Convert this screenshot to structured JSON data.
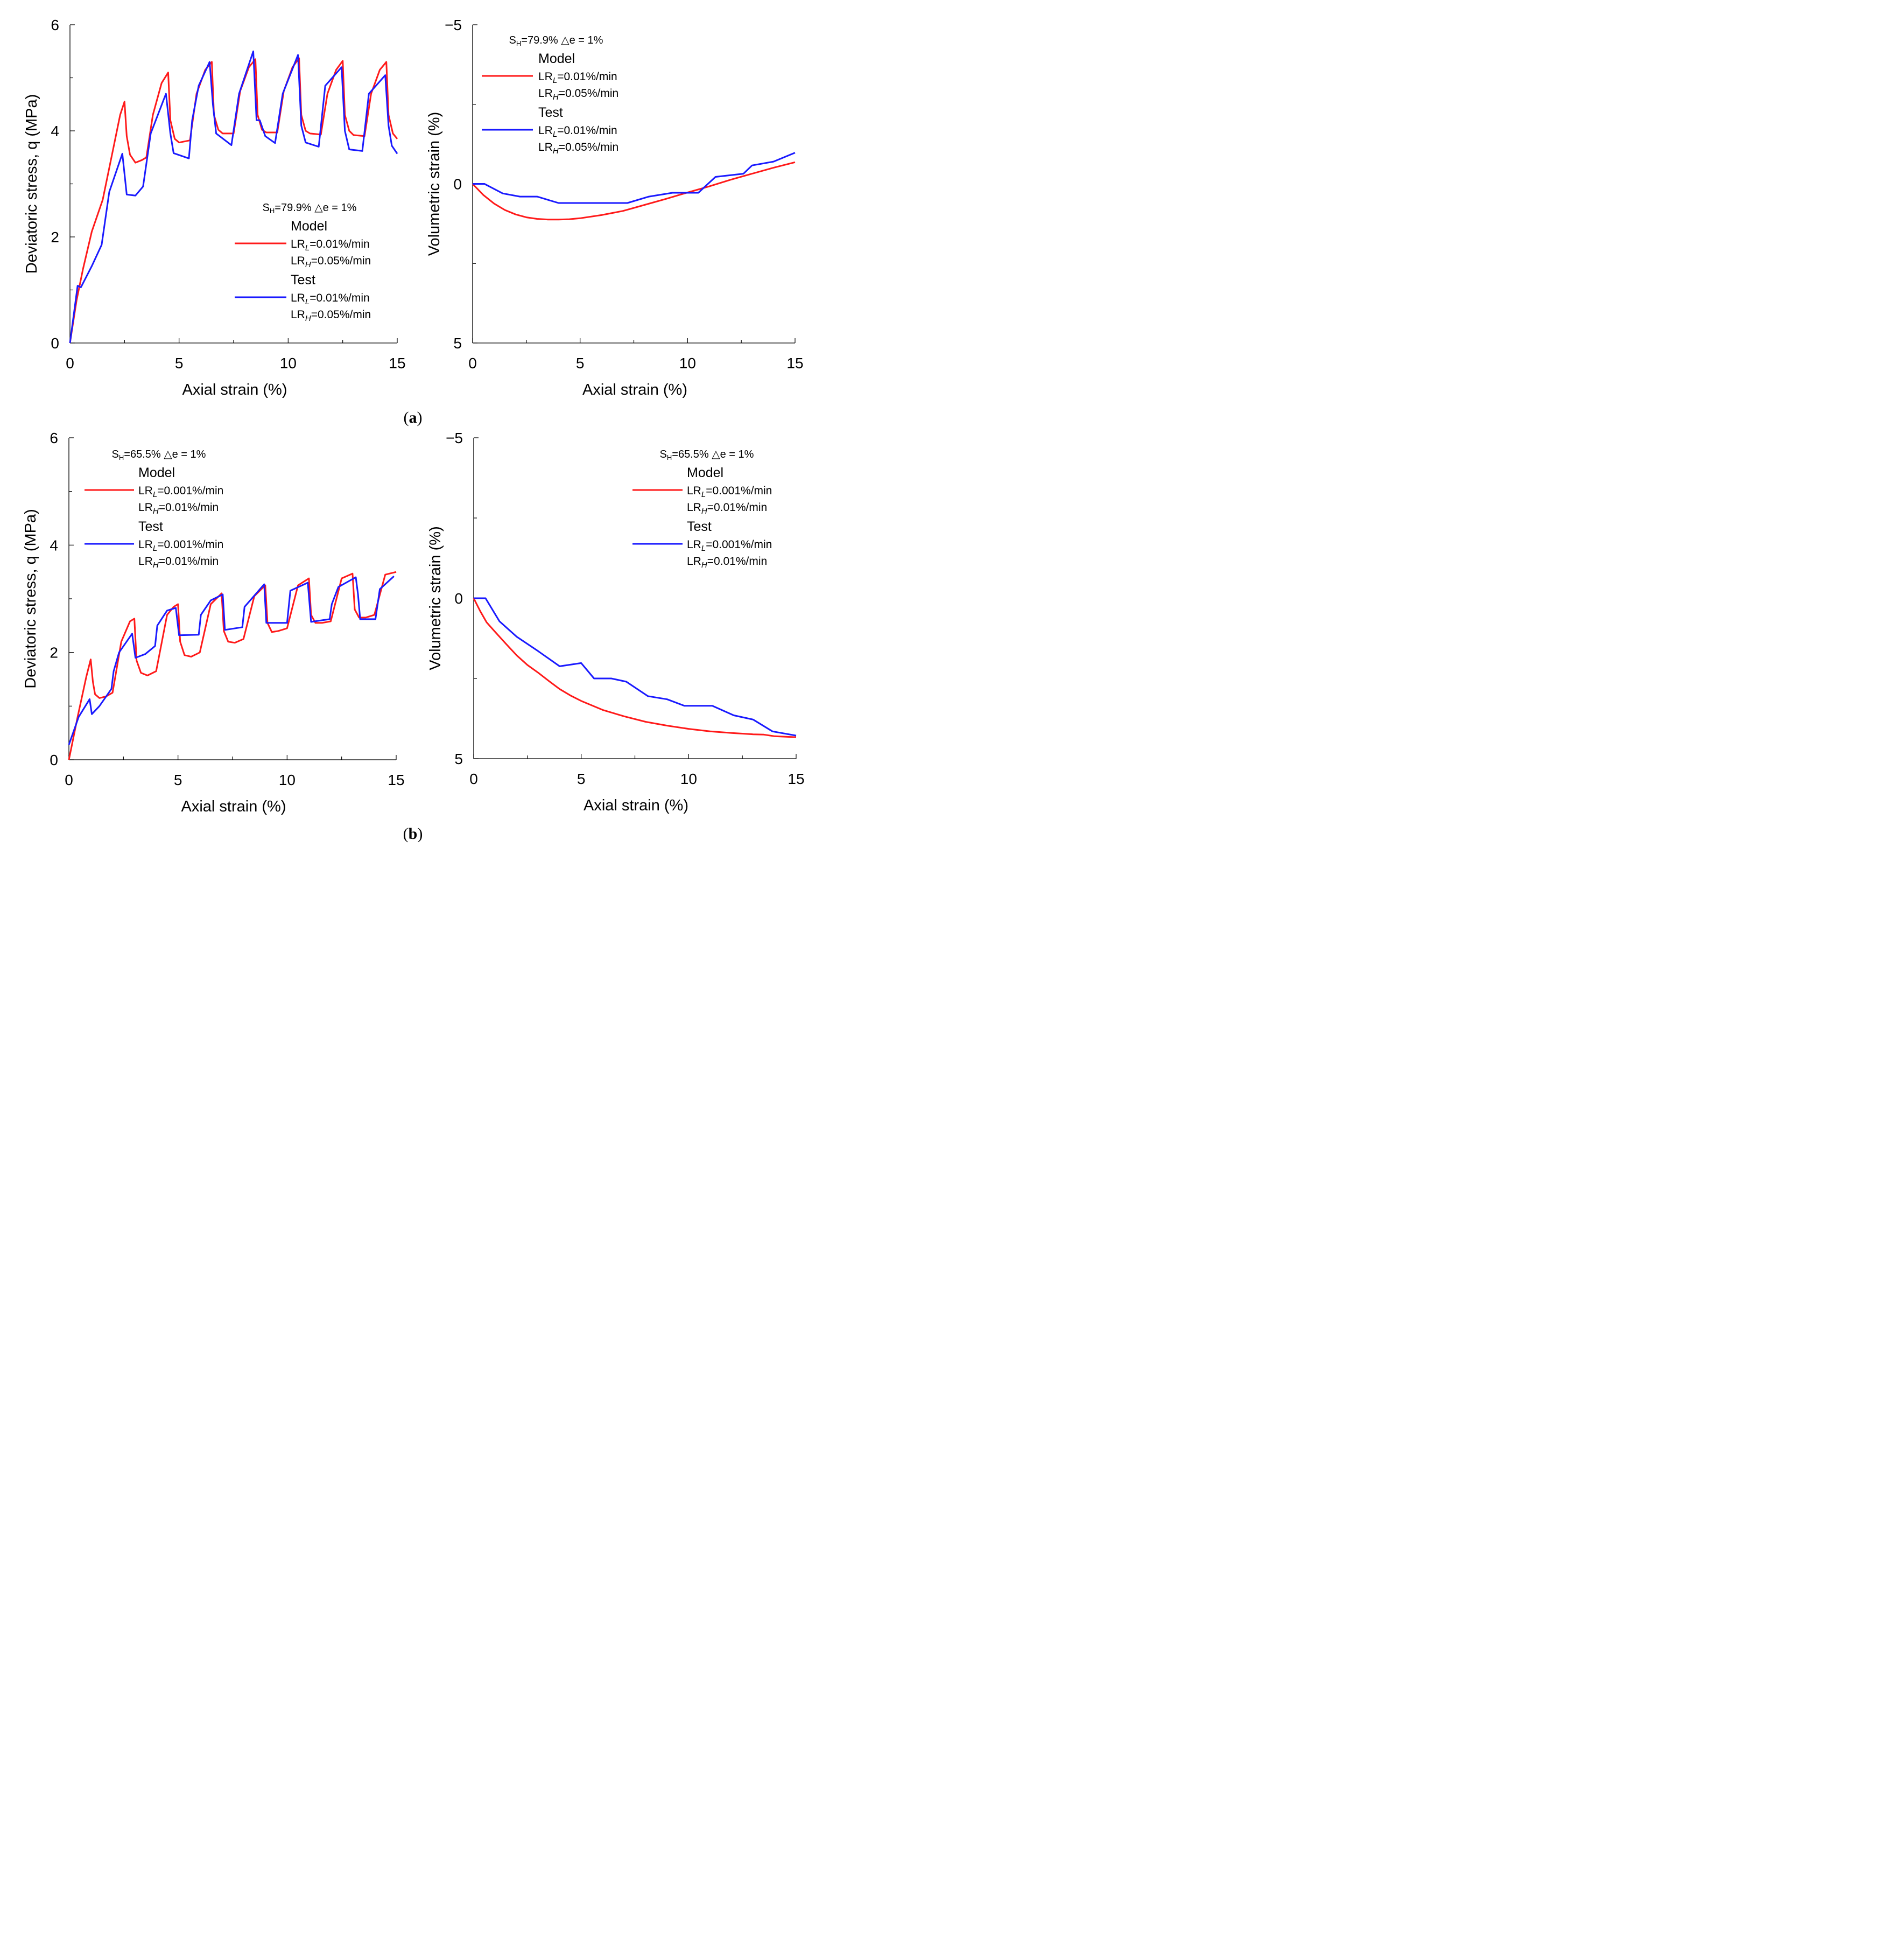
{
  "figure": {
    "captions": [
      {
        "open": "(",
        "letter": "a",
        "close": ")"
      },
      {
        "open": "(",
        "letter": "b",
        "close": ")"
      }
    ]
  },
  "colors": {
    "model": "#ff1a1a",
    "test": "#1a1aff",
    "axis": "#000000"
  },
  "chart_data": [
    {
      "id": "a-stress",
      "type": "line",
      "xlabel": "Axial strain (%)",
      "ylabel": "Deviatoric stress, q (MPa)",
      "xlim": [
        0,
        15
      ],
      "ylim": [
        0,
        6
      ],
      "y_inverted": false,
      "xticks": [
        0,
        5,
        10,
        15
      ],
      "yticks": [
        0,
        2,
        4,
        6
      ],
      "legend": {
        "placement": "center-right",
        "condition": {
          "s_base": "S",
          "s_sub": "H",
          "s_rest": "=79.9% △e = 1%"
        },
        "groups": [
          {
            "header": "Model",
            "lr_l": {
              "base": "LR",
              "sub": "L",
              "rest": "=0.01%/min"
            },
            "lr_h": {
              "base": "LR",
              "sub": "H",
              "rest": "=0.05%/min"
            }
          },
          {
            "header": "Test",
            "lr_l": {
              "base": "LR",
              "sub": "L",
              "rest": "=0.01%/min"
            },
            "lr_h": {
              "base": "LR",
              "sub": "H",
              "rest": "=0.05%/min"
            }
          }
        ]
      },
      "series": [
        {
          "name": "Model",
          "color": "#ff1a1a",
          "x": [
            0,
            0.3,
            0.6,
            1.0,
            1.5,
            2.0,
            2.3,
            2.5,
            2.6,
            2.75,
            3.0,
            3.3,
            3.5,
            3.8,
            4.2,
            4.5,
            4.6,
            4.8,
            5.0,
            5.5,
            5.8,
            6.2,
            6.5,
            6.6,
            6.8,
            7.0,
            7.5,
            7.8,
            8.2,
            8.5,
            8.6,
            8.8,
            9.0,
            9.5,
            9.8,
            10.2,
            10.5,
            10.6,
            10.8,
            11.0,
            11.5,
            11.8,
            12.2,
            12.5,
            12.6,
            12.8,
            13.0,
            13.5,
            13.8,
            14.2,
            14.5,
            14.6,
            14.8,
            15.0
          ],
          "y": [
            0,
            0.8,
            1.4,
            2.1,
            2.7,
            3.7,
            4.3,
            4.55,
            3.9,
            3.55,
            3.4,
            3.45,
            3.5,
            4.3,
            4.9,
            5.1,
            4.2,
            3.85,
            3.78,
            3.82,
            4.7,
            5.15,
            5.3,
            4.3,
            4.02,
            3.95,
            3.95,
            4.75,
            5.2,
            5.35,
            4.3,
            4.02,
            3.97,
            3.97,
            4.75,
            5.2,
            5.37,
            4.3,
            4.0,
            3.95,
            3.93,
            4.7,
            5.15,
            5.32,
            4.3,
            4.0,
            3.92,
            3.9,
            4.7,
            5.15,
            5.3,
            4.3,
            3.95,
            3.85
          ]
        },
        {
          "name": "Test",
          "color": "#1a1aff",
          "x": [
            0,
            0.35,
            0.5,
            1.0,
            1.45,
            1.8,
            2.4,
            2.6,
            3.0,
            3.35,
            3.7,
            4.4,
            4.6,
            4.75,
            5.45,
            5.6,
            5.9,
            6.4,
            6.55,
            6.7,
            7.4,
            7.75,
            8.4,
            8.55,
            8.7,
            8.95,
            9.4,
            9.75,
            10.45,
            10.6,
            10.8,
            11.4,
            11.7,
            12.45,
            12.6,
            12.8,
            13.4,
            13.7,
            14.45,
            14.6,
            14.75,
            15.0
          ],
          "y": [
            0,
            1.08,
            1.05,
            1.45,
            1.85,
            2.85,
            3.57,
            2.8,
            2.78,
            2.95,
            3.95,
            4.7,
            3.95,
            3.58,
            3.48,
            4.2,
            4.85,
            5.3,
            4.5,
            3.95,
            3.73,
            4.7,
            5.5,
            4.2,
            4.2,
            3.9,
            3.77,
            4.7,
            5.43,
            4.1,
            3.78,
            3.7,
            4.85,
            5.2,
            4.0,
            3.65,
            3.62,
            4.7,
            5.05,
            4.1,
            3.72,
            3.57
          ]
        }
      ]
    },
    {
      "id": "a-volumetric",
      "type": "line",
      "xlabel": "Axial strain (%)",
      "ylabel": "Volumetric strain (%)",
      "xlim": [
        0,
        15
      ],
      "ylim": [
        -5,
        5
      ],
      "y_inverted": true,
      "xticks": [
        0,
        5,
        10,
        15
      ],
      "yticks": [
        -5,
        0,
        5
      ],
      "ytick_labels": [
        "−5",
        "0",
        "5"
      ],
      "legend": {
        "placement": "top-left",
        "condition": {
          "s_base": "S",
          "s_sub": "H",
          "s_rest": "=79.9% △e = 1%"
        },
        "groups": [
          {
            "header": "Model",
            "lr_l": {
              "base": "LR",
              "sub": "L",
              "rest": "=0.01%/min"
            },
            "lr_h": {
              "base": "LR",
              "sub": "H",
              "rest": "=0.05%/min"
            }
          },
          {
            "header": "Test",
            "lr_l": {
              "base": "LR",
              "sub": "L",
              "rest": "=0.01%/min"
            },
            "lr_h": {
              "base": "LR",
              "sub": "H",
              "rest": "=0.05%/min"
            }
          }
        ]
      },
      "series": [
        {
          "name": "Model",
          "color": "#ff1a1a",
          "x": [
            0,
            0.5,
            1.0,
            1.5,
            2.0,
            2.5,
            3.0,
            3.5,
            4.0,
            4.5,
            5.0,
            6.0,
            7.0,
            8.0,
            9.0,
            10.0,
            11.0,
            12.0,
            13.0,
            14.0,
            15.0
          ],
          "y": [
            0,
            0.35,
            0.62,
            0.82,
            0.96,
            1.05,
            1.1,
            1.12,
            1.12,
            1.11,
            1.08,
            0.98,
            0.85,
            0.66,
            0.47,
            0.27,
            0.08,
            -0.13,
            -0.32,
            -0.51,
            -0.68
          ]
        },
        {
          "name": "Test",
          "color": "#1a1aff",
          "x": [
            0,
            0.55,
            1.4,
            2.2,
            3.0,
            4.0,
            5.0,
            6.0,
            7.2,
            8.2,
            9.3,
            10.5,
            11.3,
            12.6,
            13.0,
            14.0,
            15.0
          ],
          "y": [
            0,
            0.0,
            0.3,
            0.4,
            0.4,
            0.6,
            0.6,
            0.6,
            0.6,
            0.4,
            0.28,
            0.28,
            -0.22,
            -0.32,
            -0.58,
            -0.7,
            -0.98
          ]
        }
      ]
    },
    {
      "id": "b-stress",
      "type": "line",
      "xlabel": "Axial strain (%)",
      "ylabel": "Deviatoric stress, q (MPa)",
      "xlim": [
        0,
        15
      ],
      "ylim": [
        0,
        6
      ],
      "y_inverted": false,
      "xticks": [
        0,
        5,
        10,
        15
      ],
      "yticks": [
        0,
        2,
        4,
        6
      ],
      "legend": {
        "placement": "top-left",
        "condition": {
          "s_base": "S",
          "s_sub": "H",
          "s_rest": "=65.5% △e = 1%"
        },
        "groups": [
          {
            "header": "Model",
            "lr_l": {
              "base": "LR",
              "sub": "L",
              "rest": "=0.001%/min"
            },
            "lr_h": {
              "base": "LR",
              "sub": "H",
              "rest": "=0.01%/min"
            }
          },
          {
            "header": "Test",
            "lr_l": {
              "base": "LR",
              "sub": "L",
              "rest": "=0.001%/min"
            },
            "lr_h": {
              "base": "LR",
              "sub": "H",
              "rest": "=0.01%/min"
            }
          }
        ]
      },
      "series": [
        {
          "name": "Model",
          "color": "#ff1a1a",
          "x": [
            0,
            0.4,
            0.8,
            1.0,
            1.1,
            1.2,
            1.4,
            1.7,
            2.0,
            2.4,
            2.8,
            3.0,
            3.1,
            3.3,
            3.6,
            4.0,
            4.5,
            4.8,
            5.0,
            5.1,
            5.3,
            5.6,
            6.0,
            6.5,
            7.0,
            7.1,
            7.3,
            7.6,
            8.0,
            8.5,
            9.0,
            9.1,
            9.3,
            9.6,
            10.0,
            10.5,
            11.0,
            11.1,
            11.3,
            11.6,
            12.0,
            12.5,
            13.0,
            13.1,
            13.3,
            13.6,
            14.0,
            14.5,
            15.0
          ],
          "y": [
            0,
            0.8,
            1.55,
            1.87,
            1.45,
            1.22,
            1.15,
            1.18,
            1.25,
            2.2,
            2.58,
            2.63,
            1.85,
            1.62,
            1.57,
            1.65,
            2.7,
            2.85,
            2.9,
            2.2,
            1.95,
            1.92,
            2.0,
            2.9,
            3.1,
            2.4,
            2.2,
            2.18,
            2.25,
            3.05,
            3.25,
            2.55,
            2.38,
            2.4,
            2.45,
            3.25,
            3.38,
            2.7,
            2.55,
            2.55,
            2.58,
            3.38,
            3.47,
            2.8,
            2.65,
            2.65,
            2.7,
            3.45,
            3.5
          ]
        },
        {
          "name": "Test",
          "color": "#1a1aff",
          "x": [
            0,
            0.45,
            0.95,
            1.05,
            1.4,
            1.95,
            2.05,
            2.3,
            2.9,
            3.05,
            3.5,
            3.95,
            4.05,
            4.5,
            4.9,
            5.05,
            5.95,
            6.05,
            6.5,
            7.05,
            7.15,
            7.95,
            8.05,
            8.95,
            9.05,
            10.0,
            10.15,
            10.95,
            11.1,
            11.95,
            12.05,
            12.35,
            13.15,
            13.25,
            13.35,
            14.05,
            14.25,
            14.9
          ],
          "y": [
            0.28,
            0.8,
            1.13,
            0.85,
            1.0,
            1.32,
            1.65,
            2.0,
            2.35,
            1.9,
            1.97,
            2.12,
            2.5,
            2.78,
            2.83,
            2.32,
            2.33,
            2.7,
            2.97,
            3.08,
            2.42,
            2.47,
            2.85,
            3.27,
            2.55,
            2.55,
            3.15,
            3.3,
            2.57,
            2.62,
            2.9,
            3.22,
            3.4,
            3.08,
            2.62,
            2.62,
            3.18,
            3.42
          ]
        }
      ]
    },
    {
      "id": "b-volumetric",
      "type": "line",
      "xlabel": "Axial strain (%)",
      "ylabel": "Volumetric strain (%)",
      "xlim": [
        0,
        15
      ],
      "ylim": [
        -5,
        5
      ],
      "y_inverted": true,
      "xticks": [
        0,
        5,
        10,
        15
      ],
      "yticks": [
        -5,
        0,
        5
      ],
      "ytick_labels": [
        "−5",
        "0",
        "5"
      ],
      "legend": {
        "placement": "top-right",
        "condition": {
          "s_base": "S",
          "s_sub": "H",
          "s_rest": "=65.5% △e = 1%"
        },
        "groups": [
          {
            "header": "Model",
            "lr_l": {
              "base": "LR",
              "sub": "L",
              "rest": "=0.001%/min"
            },
            "lr_h": {
              "base": "LR",
              "sub": "H",
              "rest": "=0.01%/min"
            }
          },
          {
            "header": "Test",
            "lr_l": {
              "base": "LR",
              "sub": "L",
              "rest": "=0.001%/min"
            },
            "lr_h": {
              "base": "LR",
              "sub": "H",
              "rest": "=0.01%/min"
            }
          }
        ]
      },
      "series": [
        {
          "name": "Model",
          "color": "#ff1a1a",
          "x": [
            0,
            0.3,
            0.6,
            1.0,
            1.5,
            2.0,
            2.5,
            3.0,
            3.5,
            4.0,
            4.5,
            5.0,
            6.0,
            7.0,
            8.0,
            9.0,
            10.0,
            11.0,
            12.0,
            13.0,
            13.5,
            14.0,
            15.0
          ],
          "y": [
            0,
            0.4,
            0.75,
            1.05,
            1.42,
            1.78,
            2.08,
            2.32,
            2.58,
            2.83,
            3.03,
            3.2,
            3.48,
            3.68,
            3.85,
            3.97,
            4.07,
            4.15,
            4.2,
            4.24,
            4.25,
            4.3,
            4.33
          ]
        },
        {
          "name": "Test",
          "color": "#1a1aff",
          "x": [
            0,
            0.55,
            1.2,
            2.0,
            3.0,
            4.0,
            5.0,
            5.6,
            6.4,
            7.1,
            8.1,
            9.0,
            9.8,
            11.1,
            12.1,
            13.0,
            13.9,
            15.0
          ],
          "y": [
            0,
            0.0,
            0.72,
            1.2,
            1.65,
            2.12,
            2.02,
            2.5,
            2.5,
            2.6,
            3.05,
            3.15,
            3.35,
            3.35,
            3.65,
            3.78,
            4.15,
            4.28
          ]
        }
      ]
    }
  ]
}
